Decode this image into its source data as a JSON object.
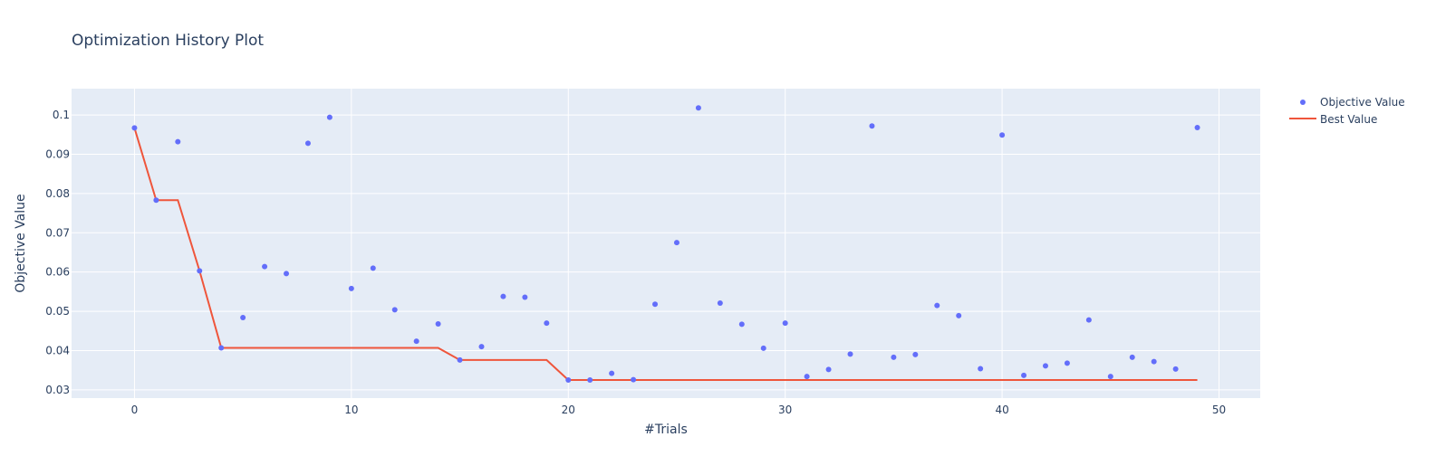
{
  "chart_data": {
    "type": "scatter",
    "title": "Optimization History Plot",
    "xlabel": "#Trials",
    "ylabel": "Objective Value",
    "xlim": [
      -2.9,
      51.9
    ],
    "ylim": [
      0.0279,
      0.1067
    ],
    "xticks": [
      0,
      10,
      20,
      30,
      40,
      50
    ],
    "yticks": [
      0.03,
      0.04,
      0.05,
      0.06,
      0.07,
      0.08,
      0.09,
      0.1
    ],
    "ytick_labels": [
      "0.03",
      "0.04",
      "0.05",
      "0.06",
      "0.07",
      "0.08",
      "0.09",
      "0.1"
    ],
    "grid": true,
    "legend_position": "top-right",
    "colors": {
      "plot_bg": "#e5ecf6",
      "grid": "#ffffff",
      "objective": "#636efa",
      "best": "#ef553b",
      "text": "#2a3f5f"
    },
    "series": [
      {
        "name": "Objective Value",
        "kind": "markers",
        "x": [
          0,
          1,
          2,
          3,
          4,
          5,
          6,
          7,
          8,
          9,
          10,
          11,
          12,
          13,
          14,
          15,
          16,
          17,
          18,
          19,
          20,
          21,
          22,
          23,
          24,
          25,
          26,
          27,
          28,
          29,
          30,
          31,
          32,
          33,
          34,
          35,
          36,
          37,
          38,
          39,
          40,
          41,
          42,
          43,
          44,
          45,
          46,
          47,
          48,
          49
        ],
        "y": [
          0.0967,
          0.0783,
          0.0932,
          0.0603,
          0.0407,
          0.0484,
          0.0614,
          0.0596,
          0.0928,
          0.0994,
          0.0558,
          0.061,
          0.0504,
          0.0424,
          0.0468,
          0.0376,
          0.041,
          0.0538,
          0.0536,
          0.047,
          0.0325,
          0.0325,
          0.0342,
          0.0326,
          0.0518,
          0.0675,
          0.1018,
          0.0521,
          0.0467,
          0.0406,
          0.047,
          0.0334,
          0.0352,
          0.0391,
          0.0972,
          0.0383,
          0.039,
          0.0515,
          0.0489,
          0.0354,
          0.0949,
          0.0337,
          0.0361,
          0.0368,
          0.0478,
          0.0334,
          0.0383,
          0.0372,
          0.0353,
          0.0968
        ]
      },
      {
        "name": "Best Value",
        "kind": "line",
        "x": [
          0,
          1,
          2,
          3,
          4,
          5,
          6,
          7,
          8,
          9,
          10,
          11,
          12,
          13,
          14,
          15,
          16,
          17,
          18,
          19,
          20,
          21,
          22,
          23,
          24,
          25,
          26,
          27,
          28,
          29,
          30,
          31,
          32,
          33,
          34,
          35,
          36,
          37,
          38,
          39,
          40,
          41,
          42,
          43,
          44,
          45,
          46,
          47,
          48,
          49
        ],
        "y": [
          0.0967,
          0.0783,
          0.0783,
          0.0603,
          0.0407,
          0.0407,
          0.0407,
          0.0407,
          0.0407,
          0.0407,
          0.0407,
          0.0407,
          0.0407,
          0.0407,
          0.0407,
          0.0376,
          0.0376,
          0.0376,
          0.0376,
          0.0376,
          0.0325,
          0.0325,
          0.0325,
          0.0325,
          0.0325,
          0.0325,
          0.0325,
          0.0325,
          0.0325,
          0.0325,
          0.0325,
          0.0325,
          0.0325,
          0.0325,
          0.0325,
          0.0325,
          0.0325,
          0.0325,
          0.0325,
          0.0325,
          0.0325,
          0.0325,
          0.0325,
          0.0325,
          0.0325,
          0.0325,
          0.0325,
          0.0325,
          0.0325,
          0.0325
        ]
      }
    ]
  }
}
